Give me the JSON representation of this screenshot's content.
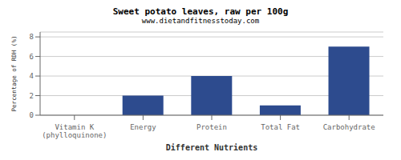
{
  "chart_data": {
    "type": "bar",
    "title": "Sweet potato leaves, raw per 100g",
    "subtitle": "www.dietandfitnesstoday.com",
    "xlabel": "Different Nutrients",
    "ylabel": "Percentage of RDH (%)",
    "categories": [
      "Vitamin K (phylloquinone)",
      "Energy",
      "Protein",
      "Total Fat",
      "Carbohydrate"
    ],
    "values": [
      0,
      2,
      4,
      1,
      7
    ],
    "color": "#2d4b8e",
    "ylim": [
      0,
      8.5
    ],
    "yticks": [
      0,
      2,
      4,
      6,
      8
    ],
    "grid": true
  }
}
